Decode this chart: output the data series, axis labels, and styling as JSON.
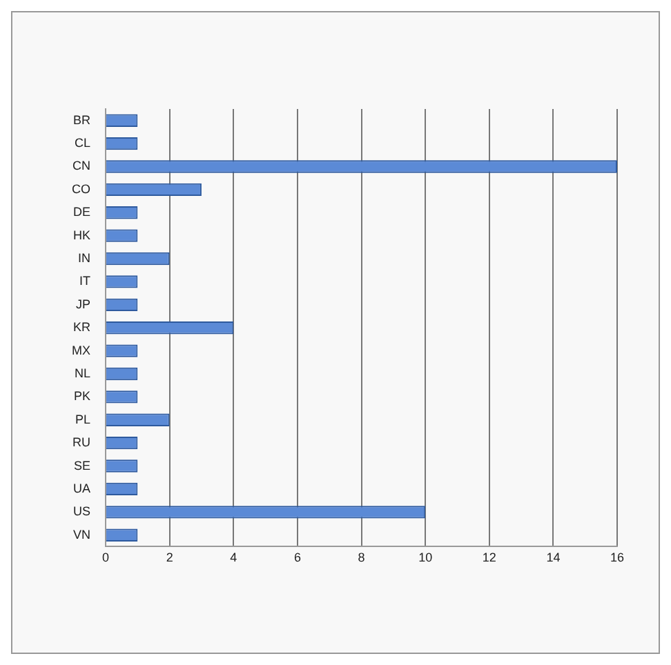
{
  "chart_data": {
    "type": "bar",
    "orientation": "horizontal",
    "categories": [
      "BR",
      "CL",
      "CN",
      "CO",
      "DE",
      "HK",
      "IN",
      "IT",
      "JP",
      "KR",
      "MX",
      "NL",
      "PK",
      "PL",
      "RU",
      "SE",
      "UA",
      "US",
      "VN"
    ],
    "values": [
      1,
      1,
      16,
      3,
      1,
      1,
      2,
      1,
      1,
      4,
      1,
      1,
      1,
      2,
      1,
      1,
      1,
      10,
      1
    ],
    "color": "#5b8ad6",
    "xlim": [
      0,
      16
    ],
    "xticks": [
      0,
      2,
      4,
      6,
      8,
      10,
      12,
      14,
      16
    ],
    "grid": "x",
    "legend": false
  }
}
